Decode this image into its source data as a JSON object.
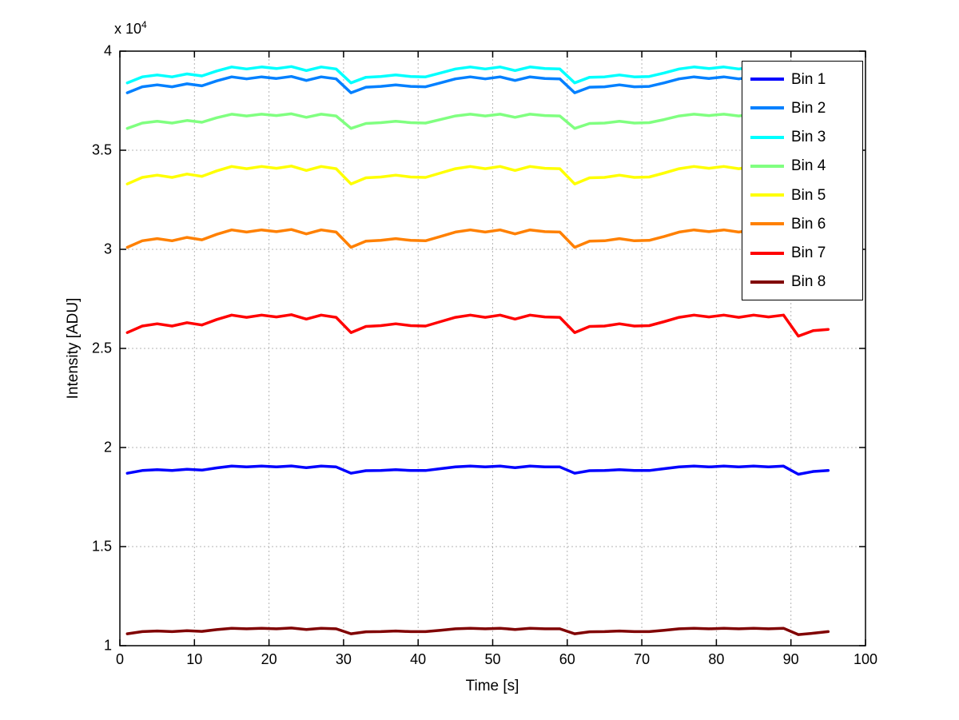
{
  "figure": {
    "background": "#ffffff",
    "y_multiplier_label": "x 10",
    "y_multiplier_exp": "4"
  },
  "chart_data": {
    "type": "line",
    "title": "",
    "xlabel": "Time [s]",
    "ylabel": "Intensity [ADU]",
    "y_scale": "1e4",
    "xlim": [
      0,
      100
    ],
    "ylim": [
      1,
      4
    ],
    "x_ticks": [
      0,
      10,
      20,
      30,
      40,
      50,
      60,
      70,
      80,
      90,
      100
    ],
    "y_ticks": [
      1,
      1.5,
      2,
      2.5,
      3,
      3.5,
      4
    ],
    "grid": "dotted",
    "legend_position": "upper right",
    "x": [
      1,
      3,
      5,
      7,
      9,
      11,
      13,
      15,
      17,
      19,
      21,
      23,
      25,
      27,
      29,
      31,
      33,
      35,
      37,
      39,
      41,
      43,
      45,
      47,
      49,
      51,
      53,
      55,
      57,
      59,
      61,
      63,
      65,
      67,
      69,
      71,
      73,
      75,
      77,
      79,
      81,
      83,
      85,
      87,
      89,
      91,
      93,
      95
    ],
    "series": [
      {
        "name": "Bin 1",
        "color": "#0000FF",
        "values": [
          1.87,
          1.884,
          1.888,
          1.884,
          1.89,
          1.886,
          1.897,
          1.906,
          1.902,
          1.906,
          1.902,
          1.907,
          1.898,
          1.906,
          1.902,
          1.87,
          1.883,
          1.884,
          1.888,
          1.884,
          1.884,
          1.893,
          1.902,
          1.906,
          1.902,
          1.906,
          1.898,
          1.906,
          1.902,
          1.902,
          1.87,
          1.883,
          1.884,
          1.888,
          1.884,
          1.884,
          1.893,
          1.902,
          1.906,
          1.902,
          1.906,
          1.902,
          1.906,
          1.902,
          1.906,
          1.865,
          1.879,
          1.884
        ]
      },
      {
        "name": "Bin 2",
        "color": "#0080FF",
        "values": [
          3.79,
          3.82,
          3.83,
          3.82,
          3.835,
          3.825,
          3.85,
          3.87,
          3.86,
          3.87,
          3.862,
          3.872,
          3.852,
          3.87,
          3.86,
          3.79,
          3.818,
          3.822,
          3.83,
          3.822,
          3.82,
          3.84,
          3.86,
          3.87,
          3.86,
          3.87,
          3.852,
          3.87,
          3.862,
          3.86,
          3.79,
          3.818,
          3.82,
          3.83,
          3.82,
          3.822,
          3.84,
          3.86,
          3.87,
          3.862,
          3.87,
          3.86,
          3.87,
          3.862,
          3.87,
          3.78,
          3.81,
          3.82
        ]
      },
      {
        "name": "Bin 3",
        "color": "#00FFFF",
        "values": [
          3.84,
          3.87,
          3.88,
          3.87,
          3.885,
          3.875,
          3.9,
          3.92,
          3.91,
          3.92,
          3.912,
          3.922,
          3.902,
          3.92,
          3.91,
          3.84,
          3.868,
          3.872,
          3.88,
          3.872,
          3.87,
          3.89,
          3.91,
          3.92,
          3.91,
          3.92,
          3.902,
          3.92,
          3.912,
          3.91,
          3.84,
          3.868,
          3.87,
          3.88,
          3.87,
          3.872,
          3.89,
          3.91,
          3.92,
          3.912,
          3.92,
          3.91,
          3.92,
          3.912,
          3.92,
          3.83,
          3.86,
          3.87
        ]
      },
      {
        "name": "Bin 4",
        "color": "#80FF80",
        "values": [
          3.61,
          3.637,
          3.646,
          3.637,
          3.65,
          3.641,
          3.664,
          3.682,
          3.673,
          3.682,
          3.675,
          3.684,
          3.666,
          3.682,
          3.673,
          3.61,
          3.635,
          3.639,
          3.646,
          3.639,
          3.637,
          3.655,
          3.673,
          3.682,
          3.673,
          3.682,
          3.666,
          3.682,
          3.675,
          3.673,
          3.61,
          3.635,
          3.637,
          3.646,
          3.637,
          3.639,
          3.655,
          3.673,
          3.682,
          3.675,
          3.682,
          3.673,
          3.682,
          3.675,
          3.682,
          3.601,
          3.628,
          3.637
        ]
      },
      {
        "name": "Bin 5",
        "color": "#FFFF00",
        "values": [
          3.33,
          3.363,
          3.374,
          3.363,
          3.38,
          3.368,
          3.396,
          3.418,
          3.407,
          3.418,
          3.409,
          3.42,
          3.398,
          3.418,
          3.407,
          3.33,
          3.361,
          3.365,
          3.374,
          3.365,
          3.363,
          3.385,
          3.407,
          3.418,
          3.407,
          3.418,
          3.398,
          3.418,
          3.409,
          3.407,
          3.33,
          3.361,
          3.363,
          3.374,
          3.363,
          3.365,
          3.385,
          3.407,
          3.418,
          3.409,
          3.418,
          3.407,
          3.418,
          3.409,
          3.418,
          3.319,
          3.352,
          3.363
        ]
      },
      {
        "name": "Bin 6",
        "color": "#FF8000",
        "values": [
          3.01,
          3.043,
          3.054,
          3.043,
          3.06,
          3.048,
          3.076,
          3.098,
          3.087,
          3.098,
          3.089,
          3.1,
          3.078,
          3.098,
          3.087,
          3.01,
          3.041,
          3.045,
          3.054,
          3.045,
          3.043,
          3.065,
          3.087,
          3.098,
          3.087,
          3.098,
          3.078,
          3.098,
          3.089,
          3.087,
          3.01,
          3.041,
          3.043,
          3.054,
          3.043,
          3.045,
          3.065,
          3.087,
          3.098,
          3.089,
          3.098,
          3.087,
          3.098,
          3.089,
          3.098,
          2.999,
          3.032,
          3.043
        ]
      },
      {
        "name": "Bin 7",
        "color": "#FF0000",
        "values": [
          2.58,
          2.613,
          2.624,
          2.613,
          2.63,
          2.618,
          2.646,
          2.668,
          2.657,
          2.668,
          2.659,
          2.67,
          2.648,
          2.668,
          2.657,
          2.58,
          2.611,
          2.615,
          2.624,
          2.615,
          2.613,
          2.635,
          2.657,
          2.668,
          2.657,
          2.668,
          2.648,
          2.668,
          2.659,
          2.657,
          2.58,
          2.611,
          2.613,
          2.624,
          2.613,
          2.615,
          2.635,
          2.657,
          2.668,
          2.659,
          2.668,
          2.657,
          2.668,
          2.659,
          2.668,
          2.562,
          2.59,
          2.596
        ]
      },
      {
        "name": "Bin 8",
        "color": "#800000",
        "values": [
          1.06,
          1.071,
          1.074,
          1.071,
          1.076,
          1.072,
          1.081,
          1.088,
          1.085,
          1.088,
          1.085,
          1.089,
          1.082,
          1.088,
          1.085,
          1.06,
          1.07,
          1.071,
          1.074,
          1.071,
          1.071,
          1.078,
          1.085,
          1.088,
          1.085,
          1.088,
          1.082,
          1.088,
          1.085,
          1.085,
          1.06,
          1.07,
          1.071,
          1.074,
          1.071,
          1.071,
          1.078,
          1.085,
          1.088,
          1.085,
          1.088,
          1.085,
          1.088,
          1.085,
          1.088,
          1.056,
          1.063,
          1.071
        ]
      }
    ]
  }
}
